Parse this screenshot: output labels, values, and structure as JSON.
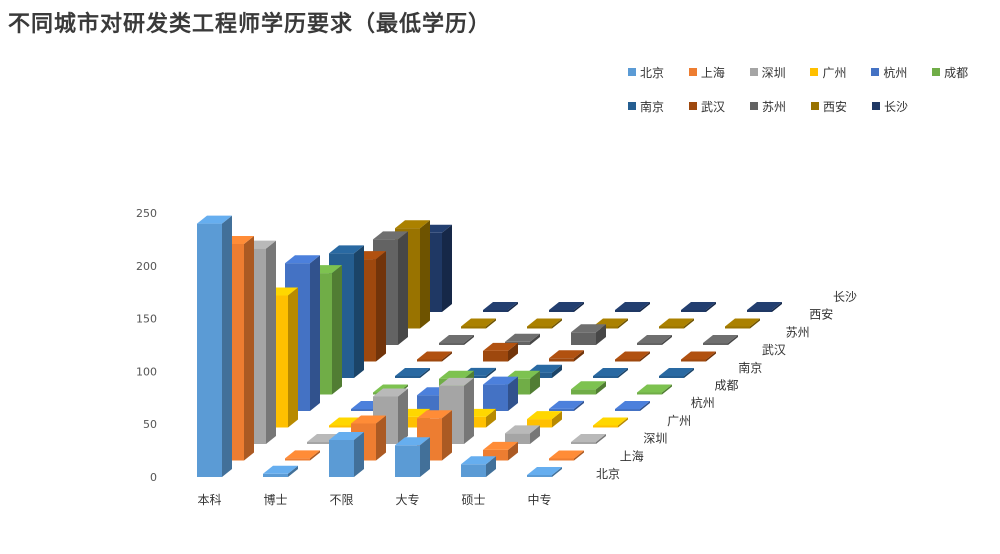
{
  "chart_data": {
    "type": "bar",
    "title": "不同城市对研发类工程师学历要求（最低学历）",
    "categories": [
      "本科",
      "博士",
      "不限",
      "大专",
      "硕士",
      "中专"
    ],
    "ylim": [
      0,
      250
    ],
    "yticks": [
      "0",
      "50",
      "100",
      "150",
      "200",
      "250"
    ],
    "grid": false,
    "legend_placement": "top-right",
    "series": [
      {
        "name": "北京",
        "color": "#5B9BD5",
        "values": [
          240,
          3,
          35,
          30,
          12,
          1
        ]
      },
      {
        "name": "上海",
        "color": "#ED7D31",
        "values": [
          205,
          2,
          35,
          40,
          10,
          1
        ]
      },
      {
        "name": "深圳",
        "color": "#A5A5A5",
        "values": [
          185,
          1,
          45,
          55,
          10,
          1
        ]
      },
      {
        "name": "广州",
        "color": "#FFC000",
        "values": [
          125,
          1,
          10,
          10,
          8,
          1
        ]
      },
      {
        "name": "杭州",
        "color": "#4472C4",
        "values": [
          140,
          1,
          15,
          25,
          2,
          1
        ]
      },
      {
        "name": "成都",
        "color": "#70AD47",
        "values": [
          115,
          1,
          15,
          15,
          5,
          1
        ]
      },
      {
        "name": "南京",
        "color": "#255E91",
        "values": [
          118,
          1,
          2,
          5,
          1,
          1
        ]
      },
      {
        "name": "武汉",
        "color": "#9E480E",
        "values": [
          97,
          1,
          10,
          3,
          1,
          1
        ]
      },
      {
        "name": "苏州",
        "color": "#636363",
        "values": [
          100,
          1,
          3,
          12,
          1,
          1
        ]
      },
      {
        "name": "西安",
        "color": "#997300",
        "values": [
          95,
          1,
          1,
          1,
          1,
          1
        ]
      },
      {
        "name": "长沙",
        "color": "#1F3864",
        "values": [
          75,
          1,
          1,
          1,
          1,
          1
        ]
      }
    ]
  }
}
